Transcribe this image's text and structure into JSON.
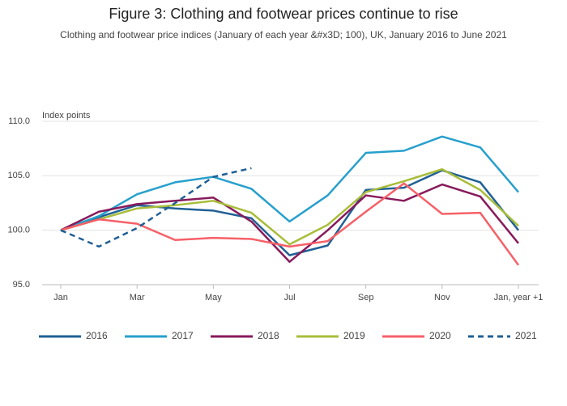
{
  "chart_data": {
    "type": "line",
    "title": "Figure 3: Clothing and footwear prices continue to rise",
    "subtitle": "Clothing and footwear price indices (January of each year &#x3D; 100), UK, January 2016 to June 2021",
    "y_axis_label": "Index points",
    "categories": [
      "Jan",
      null,
      "Mar",
      null,
      "May",
      null,
      "Jul",
      null,
      "Sep",
      null,
      "Nov",
      null,
      "Jan, year +1"
    ],
    "ylim": [
      95,
      110
    ],
    "yticks": [
      {
        "value": 95,
        "label": "95.0"
      },
      {
        "value": 100,
        "label": "100.0"
      },
      {
        "value": 105,
        "label": "105.0"
      },
      {
        "value": 110,
        "label": "110.0"
      }
    ],
    "grid": true,
    "legend": "bottom",
    "series": [
      {
        "name": "2016",
        "color": "#206095",
        "dash": false,
        "values": [
          100,
          101.2,
          102.3,
          102.0,
          101.8,
          101.1,
          97.7,
          98.6,
          103.7,
          103.9,
          105.5,
          104.4,
          100.0
        ]
      },
      {
        "name": "2017",
        "color": "#27a0cc",
        "dash": false,
        "values": [
          100,
          101.3,
          103.3,
          104.4,
          104.9,
          103.8,
          100.8,
          103.2,
          107.1,
          107.3,
          108.6,
          107.6,
          103.5
        ]
      },
      {
        "name": "2018",
        "color": "#871a5b",
        "dash": false,
        "values": [
          100,
          101.7,
          102.4,
          102.7,
          103.0,
          100.8,
          97.1,
          100.0,
          103.2,
          102.7,
          104.2,
          103.1,
          98.8
        ]
      },
      {
        "name": "2019",
        "color": "#a8bd3a",
        "dash": false,
        "values": [
          100,
          101.0,
          102.0,
          102.3,
          102.7,
          101.6,
          98.7,
          100.5,
          103.5,
          104.5,
          105.6,
          103.7,
          100.4
        ]
      },
      {
        "name": "2020",
        "color": "#f66068",
        "dash": false,
        "values": [
          100,
          101.0,
          100.6,
          99.1,
          99.3,
          99.2,
          98.5,
          99.0,
          101.7,
          104.3,
          101.5,
          101.6,
          96.8
        ]
      },
      {
        "name": "2021",
        "color": "#206095",
        "dash": true,
        "values": [
          100,
          98.5,
          100.2,
          102.5,
          104.9,
          105.7,
          null,
          null,
          null,
          null,
          null,
          null,
          null
        ]
      }
    ]
  }
}
